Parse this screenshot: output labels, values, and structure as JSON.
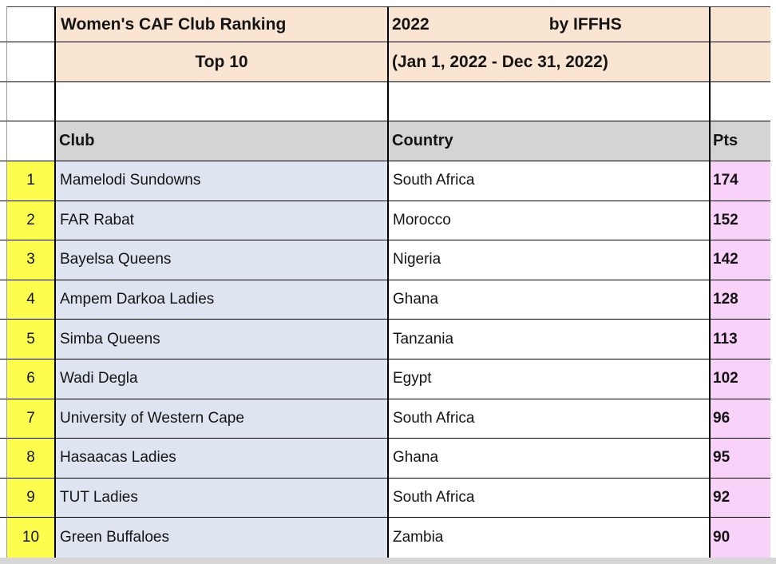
{
  "title_block": {
    "title": "Women's CAF Club Ranking",
    "year": "2022",
    "attribution": "by IFFHS",
    "subtitle": "Top 10",
    "period": "(Jan 1, 2022 - Dec 31, 2022)"
  },
  "table": {
    "headers": {
      "club": "Club",
      "country": "Country",
      "pts": "Pts"
    },
    "rows": [
      {
        "rank": "1",
        "club": "Mamelodi Sundowns",
        "country": "South Africa",
        "pts": "174"
      },
      {
        "rank": "2",
        "club": "FAR Rabat",
        "country": "Morocco",
        "pts": "152"
      },
      {
        "rank": "3",
        "club": "Bayelsa Queens",
        "country": "Nigeria",
        "pts": "142"
      },
      {
        "rank": "4",
        "club": "Ampem Darkoa Ladies",
        "country": "Ghana",
        "pts": "128"
      },
      {
        "rank": "5",
        "club": "Simba Queens",
        "country": "Tanzania",
        "pts": "113"
      },
      {
        "rank": "6",
        "club": "Wadi Degla",
        "country": "Egypt",
        "pts": "102"
      },
      {
        "rank": "7",
        "club": "University of Western Cape",
        "country": "South Africa",
        "pts": "96"
      },
      {
        "rank": "8",
        "club": "Hasaacas Ladies",
        "country": "Ghana",
        "pts": "95"
      },
      {
        "rank": "9",
        "club": "TUT Ladies",
        "country": "South Africa",
        "pts": "92"
      },
      {
        "rank": "10",
        "club": "Green Buffaloes",
        "country": "Zambia",
        "pts": "90"
      }
    ]
  },
  "colors": {
    "header_fill": "#FAE5D2",
    "column_header_fill": "#D4D4D4",
    "rank_fill": "#FDFD4E",
    "club_fill": "#DEE4F0",
    "pts_fill": "#F8D2F8",
    "grid_line": "#000000"
  }
}
